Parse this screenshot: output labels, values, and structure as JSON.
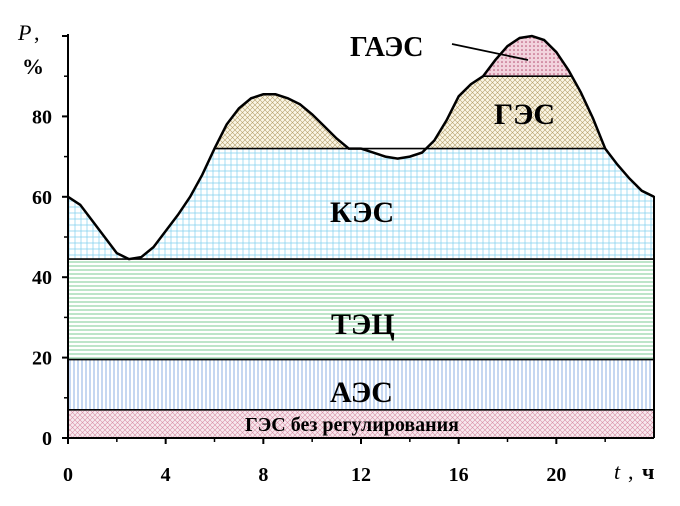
{
  "chart_data": {
    "type": "area",
    "xlabel": {
      "symbol": "t",
      "unit": "ч"
    },
    "ylabel": {
      "symbol": "P",
      "unit": "%"
    },
    "xlim": [
      0,
      24
    ],
    "ylim": [
      0,
      100
    ],
    "x_ticks": [
      0,
      4,
      8,
      12,
      16,
      20
    ],
    "y_ticks": [
      0,
      20,
      40,
      60,
      80
    ],
    "grid": false,
    "load_curve": {
      "x": [
        0,
        0.5,
        1,
        1.5,
        2,
        2.5,
        3,
        3.5,
        4,
        4.5,
        5,
        5.5,
        6,
        6.5,
        7,
        7.5,
        8,
        8.5,
        9,
        9.5,
        10,
        10.5,
        11,
        11.5,
        12,
        12.5,
        13,
        13.5,
        14,
        14.5,
        15,
        15.5,
        16,
        16.5,
        17,
        17.5,
        18,
        18.5,
        19,
        19.5,
        20,
        20.5,
        21,
        21.5,
        22,
        22.5,
        23,
        23.5,
        24
      ],
      "y": [
        60,
        58,
        54,
        50,
        46,
        44.5,
        45,
        47.5,
        51.5,
        55.5,
        60,
        65.5,
        72,
        78,
        82,
        84.5,
        85.5,
        85.5,
        84.5,
        83,
        80.5,
        77.5,
        74.5,
        72,
        72,
        71,
        70,
        69.5,
        70,
        71,
        74,
        79,
        85,
        88,
        90,
        94,
        97.5,
        99.5,
        100,
        99,
        96,
        91.5,
        86,
        79.5,
        72,
        68,
        64.5,
        61.5,
        60
      ]
    },
    "bands": [
      {
        "name": "ГЭС без регулирования",
        "lower": 0,
        "upper": 7,
        "color": "#e8bfcb"
      },
      {
        "name": "АЭС",
        "lower": 7,
        "upper": 19.5,
        "color": "#7ea6e0"
      },
      {
        "name": "ТЭЦ",
        "lower": 19.5,
        "upper": 44.5,
        "color": "#5cb87a"
      },
      {
        "name": "КЭС",
        "lower": 44.5,
        "upper": 72,
        "color": "#49b8e6"
      },
      {
        "name": "ГЭС",
        "lower": 72,
        "upper": 90,
        "color": "#b5a06a"
      },
      {
        "name": "ГАЭС",
        "lower": 90,
        "upper": 100,
        "color": "#b24a6e"
      }
    ],
    "annotations": {
      "gaes": "ГАЭС",
      "ges": "ГЭС",
      "kes": "КЭС",
      "tec": "ТЭЦ",
      "aes": "АЭС",
      "ges_unregulated": "ГЭС без регулирования"
    }
  }
}
